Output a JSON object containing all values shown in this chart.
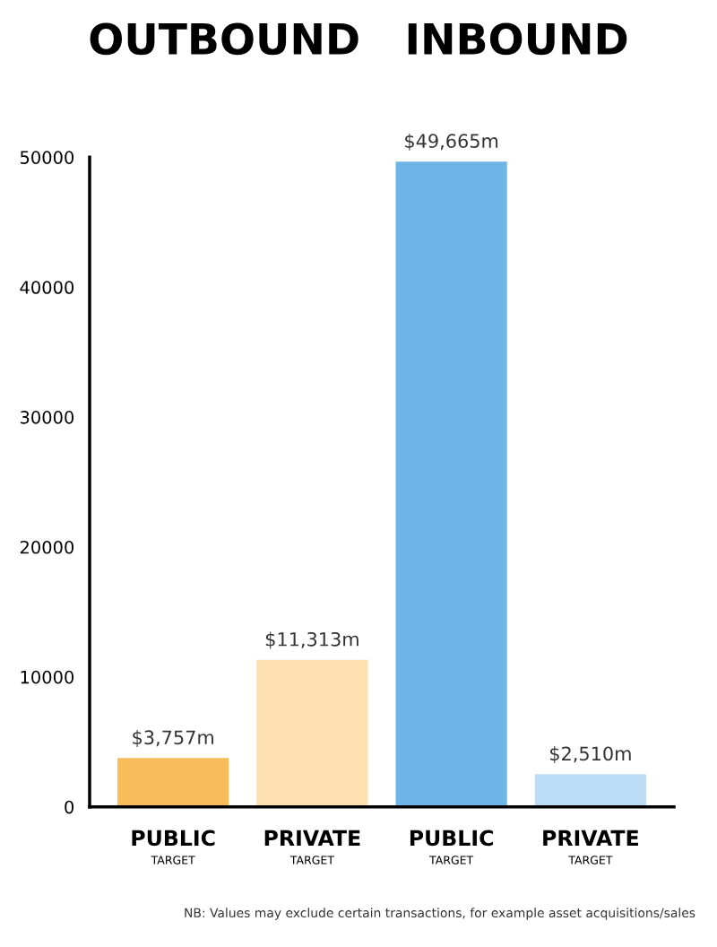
{
  "chart_data": {
    "type": "bar",
    "title": "OUTBOUND   INBOUND",
    "categories": [
      "PUBLIC\nTARGET",
      "PRIVATE\nTARGET",
      "PUBLIC\nTARGET",
      "PRIVATE\nTARGET"
    ],
    "values": [
      3757,
      11313,
      49665,
      2510
    ],
    "colors": [
      "#f9bc5a",
      "#fde0b0",
      "#6cb5e6",
      "#bcdcf5"
    ],
    "value_labels": [
      "$3,757m",
      "$11,313m",
      "$49,665m",
      "$2,510m"
    ],
    "ylim": [
      0,
      50000
    ],
    "yticks": [
      0,
      10000,
      20000,
      30000,
      40000,
      50000
    ],
    "grid": false,
    "legend": false,
    "annotations": [
      "NB: Values may exclude certain transactions, for example asset acquisitions/sales"
    ]
  }
}
